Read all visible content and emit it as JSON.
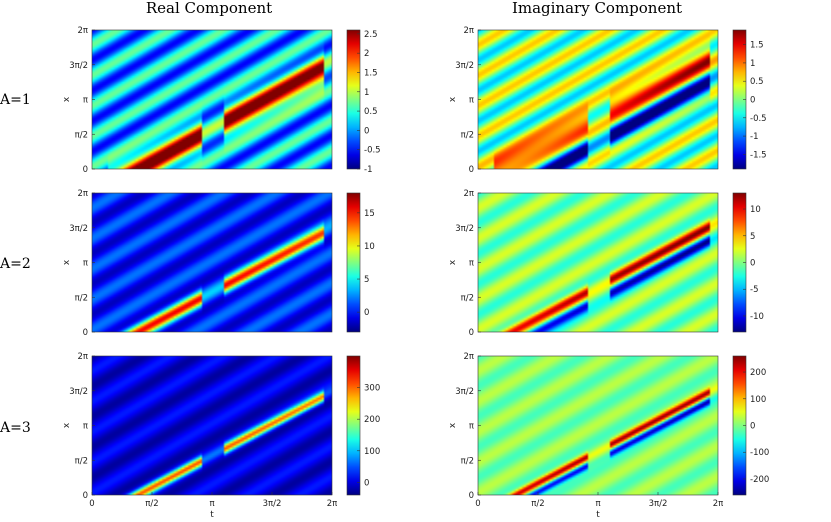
{
  "column_titles": [
    "Real Component",
    "Imaginary Component"
  ],
  "row_labels": [
    "A=1",
    "A=2",
    "A=3"
  ],
  "chart_data": [
    {
      "type": "heatmap",
      "title": "Real Component",
      "row": "A=1",
      "colormap": "jet",
      "ylabel": "x",
      "xlabel": "",
      "xlim": [
        0,
        6.2832
      ],
      "ylim": [
        0,
        6.2832
      ],
      "y_ticks": [
        "0",
        "π/2",
        "π",
        "3π/2",
        "2π"
      ],
      "x_ticks": [],
      "clim": [
        -1,
        2.6
      ],
      "colorbar_ticks": [
        "-1",
        "-0.5",
        "0",
        "0.5",
        "1",
        "1.5",
        "2",
        "2.5"
      ]
    },
    {
      "type": "heatmap",
      "title": "Imaginary Component",
      "row": "A=1",
      "colormap": "jet",
      "ylabel": "x",
      "xlabel": "",
      "xlim": [
        0,
        6.2832
      ],
      "ylim": [
        0,
        6.2832
      ],
      "y_ticks": [
        "0",
        "π/2",
        "π",
        "3π/2",
        "2π"
      ],
      "x_ticks": [],
      "clim": [
        -1.9,
        1.9
      ],
      "colorbar_ticks": [
        "-1.5",
        "-1",
        "-0.5",
        "0",
        "0.5",
        "1",
        "1.5"
      ]
    },
    {
      "type": "heatmap",
      "title": "",
      "row": "A=2",
      "colormap": "jet",
      "ylabel": "x",
      "xlabel": "",
      "xlim": [
        0,
        6.2832
      ],
      "ylim": [
        0,
        6.2832
      ],
      "y_ticks": [
        "0",
        "π/2",
        "π",
        "3π/2",
        "2π"
      ],
      "x_ticks": [],
      "clim": [
        -3,
        18
      ],
      "colorbar_ticks": [
        "0",
        "5",
        "10",
        "15"
      ]
    },
    {
      "type": "heatmap",
      "title": "",
      "row": "A=2",
      "colormap": "jet",
      "ylabel": "x",
      "xlabel": "",
      "xlim": [
        0,
        6.2832
      ],
      "ylim": [
        0,
        6.2832
      ],
      "y_ticks": [
        "0",
        "π/2",
        "π",
        "3π/2",
        "2π"
      ],
      "x_ticks": [],
      "clim": [
        -13,
        13
      ],
      "colorbar_ticks": [
        "-10",
        "-5",
        "0",
        "5",
        "10"
      ]
    },
    {
      "type": "heatmap",
      "title": "",
      "row": "A=3",
      "colormap": "jet",
      "ylabel": "x",
      "xlabel": "t",
      "xlim": [
        0,
        6.2832
      ],
      "ylim": [
        0,
        6.2832
      ],
      "y_ticks": [
        "0",
        "π/2",
        "π",
        "3π/2",
        "2π"
      ],
      "x_ticks": [
        "0",
        "π/2",
        "π",
        "3π/2",
        "2π"
      ],
      "clim": [
        -40,
        400
      ],
      "colorbar_ticks": [
        "0",
        "100",
        "200",
        "300"
      ]
    },
    {
      "type": "heatmap",
      "title": "",
      "row": "A=3",
      "colormap": "jet",
      "ylabel": "x",
      "xlabel": "t",
      "xlim": [
        0,
        6.2832
      ],
      "ylim": [
        0,
        6.2832
      ],
      "y_ticks": [
        "0",
        "π/2",
        "π",
        "3π/2",
        "2π"
      ],
      "x_ticks": [
        "0",
        "π/2",
        "π",
        "3π/2",
        "2π"
      ],
      "clim": [
        -260,
        260
      ],
      "colorbar_ticks": [
        "-200",
        "-100",
        "0",
        "100",
        "200"
      ]
    }
  ]
}
